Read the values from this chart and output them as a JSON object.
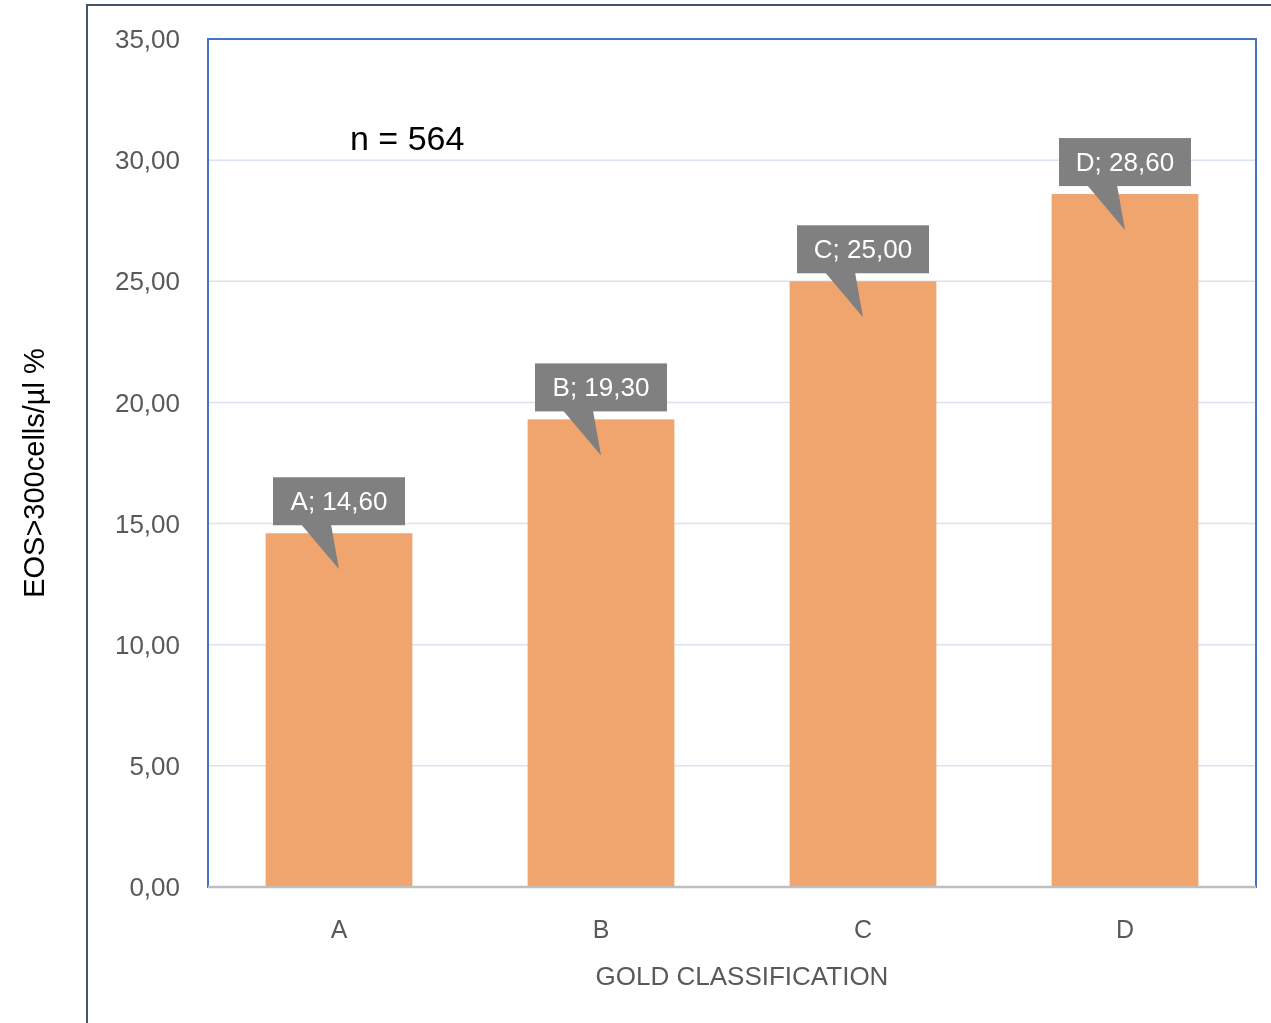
{
  "chart_data": {
    "type": "bar",
    "xlabel": "GOLD CLASSIFICATION",
    "ylabel": "EOS>300cells/µl %",
    "categories": [
      "A",
      "B",
      "C",
      "D"
    ],
    "values": [
      14.6,
      19.3,
      25.0,
      28.6
    ],
    "value_labels": [
      "A; 14,60",
      "B; 19,30",
      "C; 25,00",
      "D; 28,60"
    ],
    "color": "#f0a46e",
    "ylim": [
      0,
      35
    ],
    "yticks": [
      {
        "value": 0,
        "label": "0,00"
      },
      {
        "value": 5,
        "label": "5,00"
      },
      {
        "value": 10,
        "label": "10,00"
      },
      {
        "value": 15,
        "label": "15,00"
      },
      {
        "value": 20,
        "label": "20,00"
      },
      {
        "value": 25,
        "label": "25,00"
      },
      {
        "value": 30,
        "label": "30,00"
      },
      {
        "value": 35,
        "label": "35,00"
      }
    ],
    "grid": "y",
    "annotations": [
      "n = 564"
    ]
  }
}
